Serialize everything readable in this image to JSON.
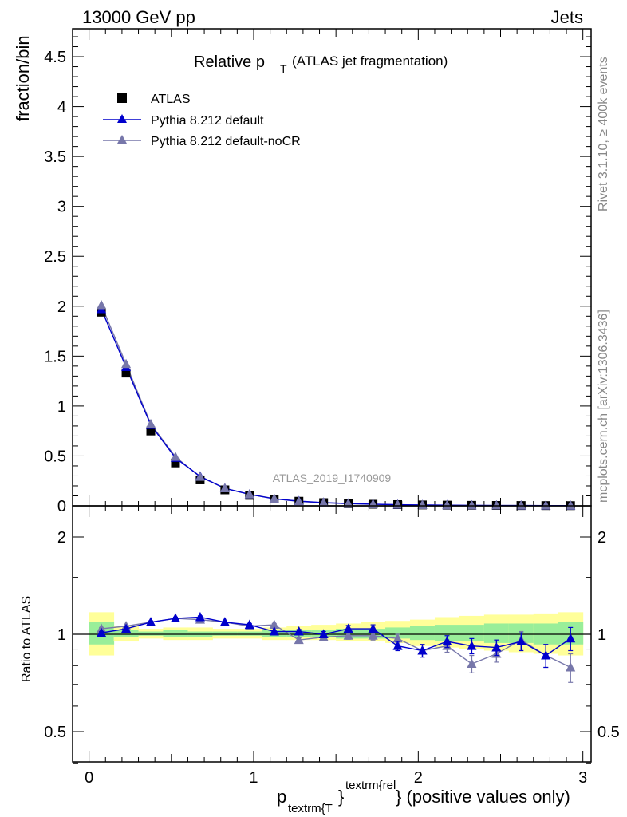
{
  "header": {
    "left": "13000 GeV pp",
    "right": "Jets"
  },
  "side_labels": {
    "upper": "Rivet 3.1.10, ≥ 400k events",
    "lower": "mcplots.cern.ch [arXiv:1306.3436]"
  },
  "chart_data": [
    {
      "type": "scatter",
      "panel": "main",
      "title_main": "Relative p",
      "title_sub": "T",
      "title_rest": "(ATLAS jet fragmentation)",
      "ylabel": "fraction/bin",
      "xlim": [
        -0.1,
        3.05
      ],
      "ylim": [
        0,
        4.78
      ],
      "yticks": [
        0,
        0.5,
        1,
        1.5,
        2,
        2.5,
        3,
        3.5,
        4,
        4.5
      ],
      "ytick_labels": [
        "0",
        "0.5",
        "1",
        "1.5",
        "2",
        "2.5",
        "3",
        "3.5",
        "4",
        "4.5"
      ],
      "analysis_id": "ATLAS_2019_I1740909",
      "legend": [
        "ATLAS",
        "Pythia 8.212 default",
        "Pythia 8.212 default-noCR"
      ],
      "x": [
        0.075,
        0.225,
        0.375,
        0.525,
        0.675,
        0.825,
        0.975,
        1.125,
        1.275,
        1.425,
        1.575,
        1.725,
        1.875,
        2.025,
        2.175,
        2.325,
        2.475,
        2.625,
        2.775,
        2.925
      ],
      "series": [
        {
          "name": "ATLAS",
          "color": "#000000",
          "marker": "square",
          "values": [
            1.94,
            1.33,
            0.75,
            0.43,
            0.26,
            0.16,
            0.105,
            0.068,
            0.046,
            0.032,
            0.022,
            0.016,
            0.012,
            0.009,
            0.007,
            0.005,
            0.004,
            0.003,
            0.0025,
            0.002
          ]
        },
        {
          "name": "Pythia 8.212 default",
          "color": "#0000cc",
          "marker": "triangle",
          "values": [
            1.97,
            1.39,
            0.81,
            0.48,
            0.295,
            0.175,
            0.115,
            0.07,
            0.047,
            0.032,
            0.023,
            0.0165,
            0.011,
            0.008,
            0.0067,
            0.0046,
            0.0035,
            0.0029,
            0.0022,
            0.0019
          ]
        },
        {
          "name": "Pythia 8.212 default-noCR",
          "color": "#7777aa",
          "marker": "triangle",
          "values": [
            2.01,
            1.42,
            0.82,
            0.49,
            0.29,
            0.175,
            0.115,
            0.072,
            0.044,
            0.031,
            0.022,
            0.0155,
            0.0115,
            0.008,
            0.0065,
            0.004,
            0.0035,
            0.0029,
            0.0021,
            0.0016
          ]
        }
      ]
    },
    {
      "type": "scatter",
      "panel": "ratio",
      "ylabel": "Ratio to ATLAS",
      "xlabel_main": "p",
      "xlabel_sub": "textrm{T",
      "xlabel_sup": "textrm{rel",
      "xlabel_brace": "}",
      "xlabel_rest": "} (positive values only)",
      "xlim": [
        -0.1,
        3.05
      ],
      "ylim": [
        0.35,
        2.25
      ],
      "xticks": [
        0,
        1,
        2,
        3
      ],
      "xtick_labels": [
        "0",
        "1",
        "2",
        "3"
      ],
      "yticks": [
        0.5,
        1,
        2
      ],
      "ytick_labels": [
        "0.5",
        "1",
        "2"
      ],
      "bins": [
        0,
        0.15,
        0.3,
        0.45,
        0.6,
        0.75,
        0.9,
        1.05,
        1.2,
        1.35,
        1.5,
        1.65,
        1.8,
        1.95,
        2.1,
        2.25,
        2.4,
        2.55,
        2.7,
        2.85,
        3.0
      ],
      "band_yellow_lo": [
        0.86,
        0.95,
        0.97,
        0.96,
        0.96,
        0.97,
        0.97,
        0.96,
        0.96,
        0.96,
        0.95,
        0.95,
        0.94,
        0.92,
        0.91,
        0.9,
        0.89,
        0.88,
        0.87,
        0.86
      ],
      "band_yellow_hi": [
        1.17,
        1.06,
        1.04,
        1.05,
        1.05,
        1.04,
        1.04,
        1.05,
        1.06,
        1.07,
        1.08,
        1.09,
        1.1,
        1.11,
        1.13,
        1.14,
        1.15,
        1.15,
        1.16,
        1.17
      ],
      "band_green_lo": [
        0.93,
        0.98,
        0.99,
        0.98,
        0.98,
        0.99,
        0.99,
        0.98,
        0.98,
        0.98,
        0.97,
        0.97,
        0.97,
        0.96,
        0.95,
        0.95,
        0.94,
        0.94,
        0.93,
        0.93
      ],
      "band_green_hi": [
        1.09,
        1.03,
        1.02,
        1.03,
        1.02,
        1.02,
        1.02,
        1.03,
        1.03,
        1.03,
        1.04,
        1.04,
        1.05,
        1.06,
        1.07,
        1.07,
        1.08,
        1.08,
        1.08,
        1.09
      ],
      "x": [
        0.075,
        0.225,
        0.375,
        0.525,
        0.675,
        0.825,
        0.975,
        1.125,
        1.275,
        1.425,
        1.575,
        1.725,
        1.875,
        2.025,
        2.175,
        2.325,
        2.475,
        2.625,
        2.775,
        2.925
      ],
      "series": [
        {
          "name": "Pythia 8.212 default",
          "color": "#0000cc",
          "values": [
            1.01,
            1.04,
            1.09,
            1.12,
            1.13,
            1.09,
            1.07,
            1.02,
            1.02,
            1.0,
            1.04,
            1.04,
            0.92,
            0.89,
            0.95,
            0.92,
            0.91,
            0.95,
            0.86,
            0.97
          ],
          "errors": [
            0.01,
            0.01,
            0.01,
            0.01,
            0.01,
            0.01,
            0.01,
            0.01,
            0.015,
            0.02,
            0.025,
            0.03,
            0.03,
            0.04,
            0.04,
            0.05,
            0.05,
            0.06,
            0.07,
            0.08
          ]
        },
        {
          "name": "Pythia 8.212 default-noCR",
          "color": "#7777aa",
          "values": [
            1.04,
            1.06,
            1.09,
            1.12,
            1.11,
            1.09,
            1.06,
            1.07,
            0.96,
            0.98,
            0.99,
            0.99,
            0.97,
            0.89,
            0.92,
            0.81,
            0.87,
            0.96,
            0.86,
            0.79
          ],
          "errors": [
            0.01,
            0.01,
            0.01,
            0.01,
            0.01,
            0.01,
            0.01,
            0.01,
            0.015,
            0.02,
            0.025,
            0.03,
            0.03,
            0.04,
            0.04,
            0.05,
            0.05,
            0.06,
            0.07,
            0.08
          ]
        }
      ]
    }
  ]
}
